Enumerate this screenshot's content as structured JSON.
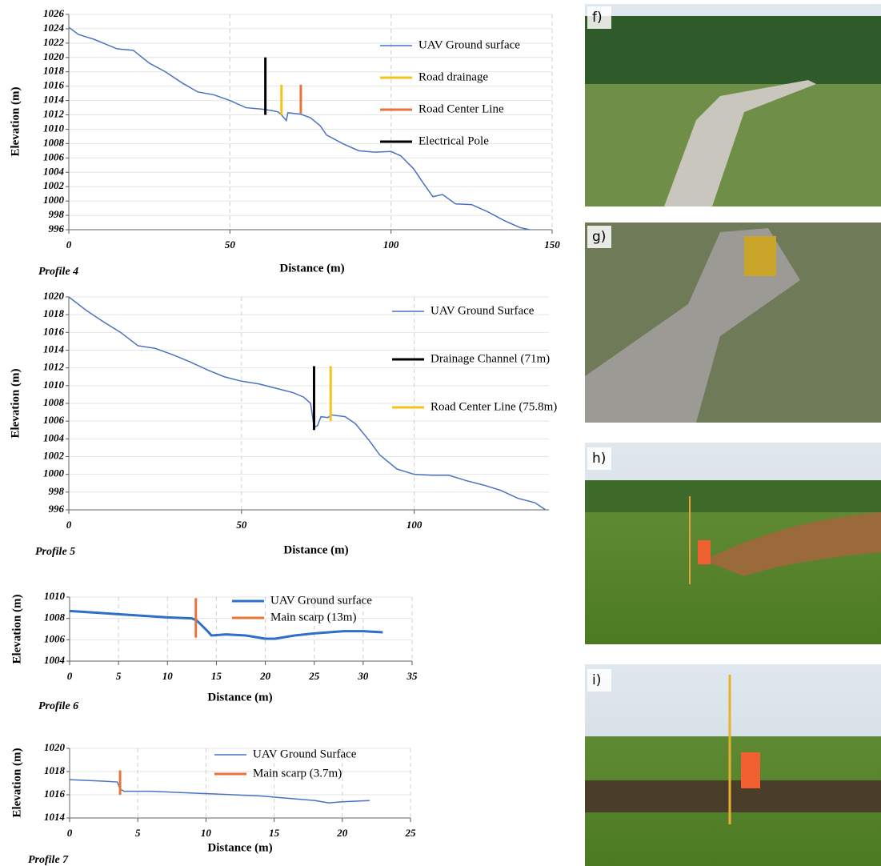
{
  "chart_data": [
    {
      "type": "line",
      "annotation": "Profile 4",
      "xlabel": "Distance (m)",
      "ylabel": "Elevation (m)",
      "xlim": [
        0,
        150
      ],
      "xticks": [
        0,
        50,
        100,
        150
      ],
      "ylim": [
        996,
        1026
      ],
      "yticks": [
        996,
        998,
        1000,
        1002,
        1004,
        1006,
        1008,
        1010,
        1012,
        1014,
        1016,
        1018,
        1020,
        1022,
        1024,
        1026
      ],
      "grid": true,
      "series": [
        {
          "name": "UAV Ground surface",
          "color": "#4a72c4",
          "x": [
            0,
            3,
            8,
            15,
            20,
            25,
            30,
            35,
            40,
            45,
            50,
            55,
            60,
            63,
            65,
            66,
            67.5,
            68,
            72,
            75,
            78,
            80,
            85,
            90,
            95,
            100,
            103,
            107,
            110,
            113,
            116,
            120,
            125,
            130,
            135,
            140,
            143
          ],
          "values": [
            1024.2,
            1023.2,
            1022.5,
            1021.2,
            1021,
            1019.2,
            1018,
            1016.5,
            1015.2,
            1014.8,
            1014,
            1013,
            1012.8,
            1012.6,
            1012.4,
            1012,
            1011.2,
            1012.3,
            1012.1,
            1011.6,
            1010.5,
            1009.2,
            1008,
            1007,
            1006.8,
            1006.9,
            1006.3,
            1004.5,
            1002.5,
            1000.6,
            1000.9,
            999.6,
            999.5,
            998.5,
            997.3,
            996.3,
            996
          ]
        },
        {
          "name": "Road drainage",
          "color": "#f2c418",
          "x": [
            66,
            66
          ],
          "values": [
            1012,
            1016.2
          ]
        },
        {
          "name": "Road Center Line",
          "color": "#e8743b",
          "x": [
            72,
            72
          ],
          "values": [
            1012.2,
            1016.2
          ]
        },
        {
          "name": "Electrical Pole",
          "color": "#000000",
          "x": [
            61,
            61
          ],
          "values": [
            1012,
            1020
          ]
        }
      ]
    },
    {
      "type": "line",
      "annotation": "Profile 5",
      "xlabel": "Distance (m)",
      "ylabel": "Elevation (m)",
      "xlim": [
        0,
        139
      ],
      "xticks": [
        0,
        50,
        100
      ],
      "ylim": [
        996,
        1020
      ],
      "yticks": [
        996,
        998,
        1000,
        1002,
        1004,
        1006,
        1008,
        1010,
        1012,
        1014,
        1016,
        1018,
        1020
      ],
      "grid": true,
      "series": [
        {
          "name": "UAV Ground Surface",
          "color": "#4a72c4",
          "x": [
            0,
            5,
            10,
            15,
            20,
            25,
            30,
            35,
            40,
            45,
            50,
            55,
            60,
            65,
            68,
            70,
            71,
            72,
            73,
            75,
            76,
            80,
            83,
            87,
            90,
            95,
            100,
            105,
            110,
            115,
            120,
            125,
            130,
            135,
            138
          ],
          "values": [
            1020,
            1018.5,
            1017.2,
            1016,
            1014.5,
            1014.2,
            1013.5,
            1012.7,
            1011.8,
            1011,
            1010.5,
            1010.2,
            1009.7,
            1009.2,
            1008.7,
            1008,
            1005.3,
            1005.5,
            1006.5,
            1006.4,
            1006.7,
            1006.5,
            1005.7,
            1003.8,
            1002.2,
            1000.6,
            1000,
            999.9,
            999.9,
            999.3,
            998.8,
            998.2,
            997.3,
            996.8,
            996
          ]
        },
        {
          "name": "Drainage Channel (71m)",
          "color": "#000000",
          "x": [
            71,
            71
          ],
          "values": [
            1005,
            1012.2
          ]
        },
        {
          "name": "Road Center Line (75.8m)",
          "color": "#f2c418",
          "x": [
            75.8,
            75.8
          ],
          "values": [
            1006,
            1012.2
          ]
        }
      ]
    },
    {
      "type": "line",
      "annotation": "Profile 6",
      "xlabel": "Distance (m)",
      "ylabel": "Elevation (m)",
      "xlim": [
        0,
        35
      ],
      "xticks": [
        0,
        5,
        10,
        15,
        20,
        25,
        30,
        35
      ],
      "ylim": [
        1004,
        1010
      ],
      "yticks": [
        1004,
        1006,
        1008,
        1010
      ],
      "grid": true,
      "series": [
        {
          "name": "UAV Ground surface",
          "color": "#2e6fc7",
          "x": [
            0,
            5,
            10,
            12.5,
            13,
            14,
            14.5,
            16,
            18,
            20,
            21,
            23,
            25,
            28,
            30,
            32
          ],
          "values": [
            1008.7,
            1008.4,
            1008.1,
            1008,
            1007.8,
            1006.9,
            1006.4,
            1006.5,
            1006.4,
            1006.1,
            1006.1,
            1006.4,
            1006.6,
            1006.8,
            1006.8,
            1006.7
          ]
        },
        {
          "name": "Main scarp (13m)",
          "color": "#e8743b",
          "x": [
            12.9,
            12.9
          ],
          "values": [
            1006.2,
            1009.9
          ]
        }
      ]
    },
    {
      "type": "line",
      "annotation": "Profile 7",
      "xlabel": "Distance (m)",
      "ylabel": "Elevation (m)",
      "xlim": [
        0,
        25
      ],
      "xticks": [
        0,
        5,
        10,
        15,
        20,
        25
      ],
      "ylim": [
        1014,
        1020
      ],
      "yticks": [
        1014,
        1016,
        1018,
        1020
      ],
      "grid": true,
      "series": [
        {
          "name": "UAV Ground Surface",
          "color": "#4a72c4",
          "x": [
            0,
            2,
            3.5,
            3.7,
            4,
            6,
            10,
            14,
            16,
            18,
            19,
            20,
            22
          ],
          "values": [
            1017.3,
            1017.2,
            1017.1,
            1016.5,
            1016.3,
            1016.3,
            1016.1,
            1015.9,
            1015.7,
            1015.5,
            1015.3,
            1015.4,
            1015.5
          ]
        },
        {
          "name": "Main scarp (3.7m)",
          "color": "#e8743b",
          "x": [
            3.7,
            3.7
          ],
          "values": [
            1016,
            1018.1
          ]
        }
      ]
    }
  ],
  "panels": [
    "f)",
    "g)",
    "h)",
    "i)"
  ]
}
